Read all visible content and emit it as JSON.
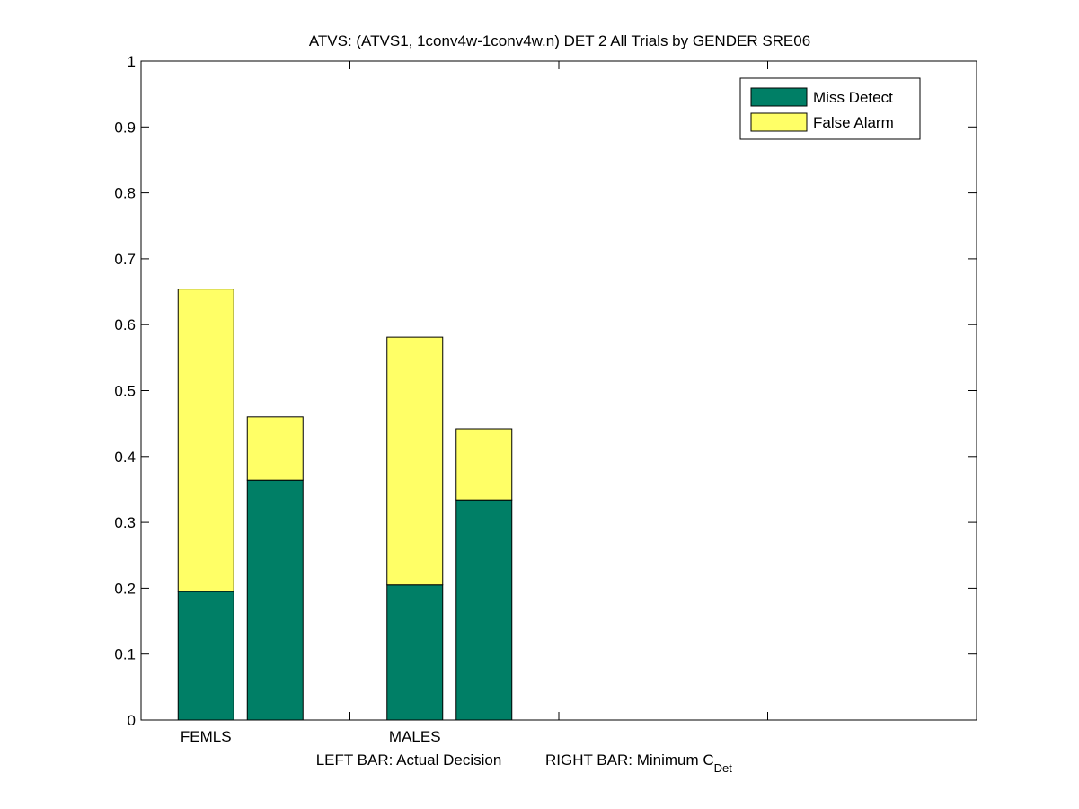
{
  "chart_data": {
    "type": "bar",
    "stacked": true,
    "title": "ATVS: (ATVS1, 1conv4w-1conv4w.n) DET 2 All Trials by GENDER SRE06",
    "xlabel_left": "LEFT BAR: Actual Decision",
    "xlabel_right_main": "RIGHT BAR: Minimum C",
    "xlabel_right_sub": "Det",
    "ylim": [
      0,
      1
    ],
    "yticks": [
      "0",
      "0.1",
      "0.2",
      "0.3",
      "0.4",
      "0.5",
      "0.6",
      "0.7",
      "0.8",
      "0.9",
      "1"
    ],
    "ytick_values": [
      0,
      0.1,
      0.2,
      0.3,
      0.4,
      0.5,
      0.6,
      0.7,
      0.8,
      0.9,
      1
    ],
    "categories": [
      "FEMLS",
      "MALES"
    ],
    "grid": false,
    "legend_position": "top-right",
    "colors": {
      "miss": "#007f66",
      "false_alarm": "#ffff66"
    },
    "series": [
      {
        "name": "Miss Detect",
        "key": "miss",
        "values": [
          [
            0.195,
            0.364
          ],
          [
            0.205,
            0.334
          ]
        ]
      },
      {
        "name": "False Alarm",
        "key": "false_alarm",
        "values": [
          [
            0.459,
            0.096
          ],
          [
            0.376,
            0.108
          ]
        ]
      }
    ]
  }
}
